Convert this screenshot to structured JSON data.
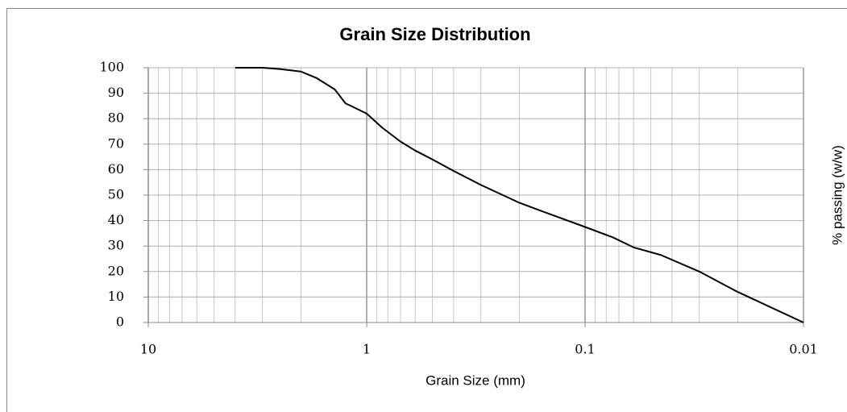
{
  "chart_data": {
    "type": "line",
    "title": "Grain Size Distribution",
    "x_label": "Grain Size (mm)",
    "y_label": "% passing (w/w)",
    "xscale": "log",
    "grid": true,
    "xlim": [
      10,
      0.01
    ],
    "xticks": [
      10,
      1,
      0.1,
      0.01
    ],
    "ylim": [
      0,
      100
    ],
    "yticks": [
      0,
      10,
      20,
      30,
      40,
      50,
      60,
      70,
      80,
      90,
      100
    ],
    "series": [
      {
        "color": "#000000",
        "x": [
          4,
          3,
          2.5,
          2,
          1.7,
          1.4,
          1.25,
          1.18,
          1,
          0.85,
          0.7,
          0.6,
          0.5,
          0.4,
          0.3,
          0.2,
          0.15,
          0.1,
          0.075,
          0.06,
          0.045,
          0.03,
          0.02,
          0.01
        ],
        "values": [
          100,
          100,
          99.5,
          98.5,
          96,
          91.5,
          86,
          85,
          82,
          76.5,
          71,
          67.5,
          64,
          59.5,
          54,
          47,
          43,
          37.5,
          33.5,
          29.5,
          26.5,
          20,
          12,
          0
        ]
      }
    ]
  }
}
